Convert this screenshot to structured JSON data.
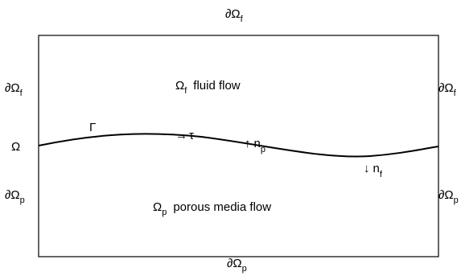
{
  "boundaries": {
    "top": {
      "base": "∂Ω",
      "sub": "f"
    },
    "bottom": {
      "base": "∂Ω",
      "sub": "p"
    },
    "left_upper": {
      "base": "∂Ω",
      "sub": "f"
    },
    "left_lower": {
      "base": "∂Ω",
      "sub": "p"
    },
    "right_upper": {
      "base": "∂Ω",
      "sub": "f"
    },
    "right_lower": {
      "base": "∂Ω",
      "sub": "p"
    }
  },
  "domain_label": "Ω",
  "regions": {
    "fluid": {
      "base": "Ω",
      "sub": "f",
      "text": "fluid flow"
    },
    "porous": {
      "base": "Ω",
      "sub": "p",
      "text": "porous media flow"
    }
  },
  "interface": {
    "label": "Γ",
    "tangent": {
      "arrow": "→",
      "symbol": "τ"
    },
    "normal_p": {
      "arrow": "↑",
      "base": "n",
      "sub": "p"
    },
    "normal_f": {
      "arrow": "↓",
      "base": "n",
      "sub": "f"
    }
  }
}
